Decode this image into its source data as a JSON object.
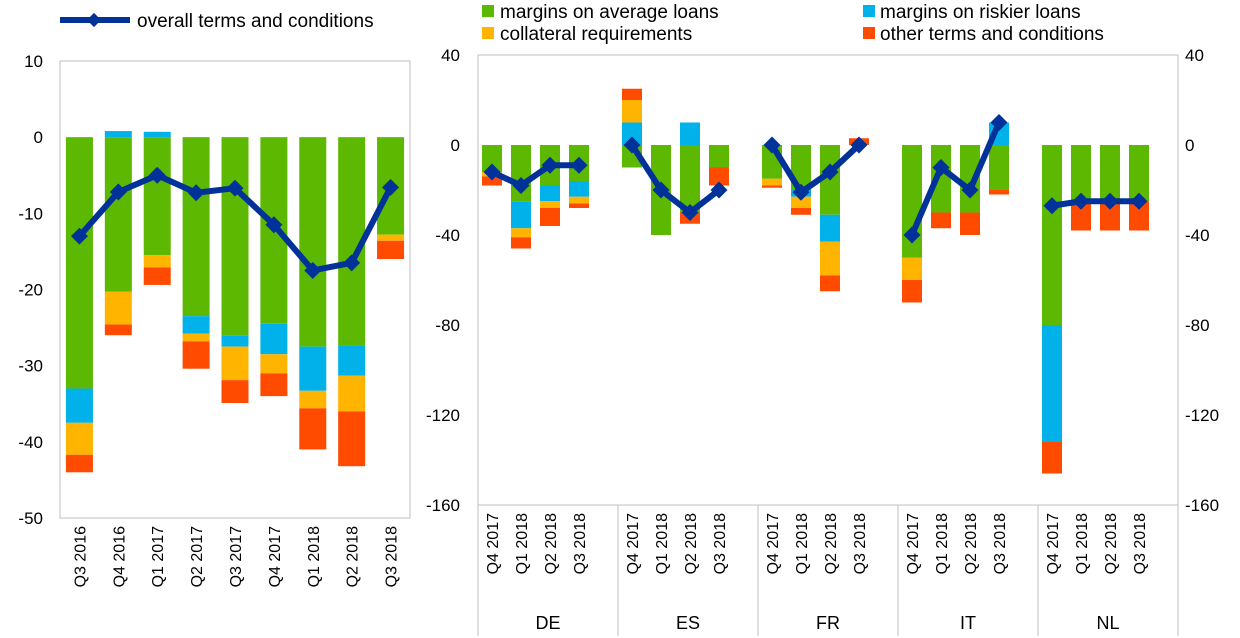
{
  "colors": {
    "margins_avg": "#5cb800",
    "margins_riskier": "#00b1ea",
    "collateral": "#ffb400",
    "other": "#ff4b00",
    "overall": "#003299",
    "frame": "#bfbfbf"
  },
  "legend": {
    "overall": "overall terms and conditions",
    "margins_avg": "margins on average loans",
    "margins_riskier": "margins on riskier loans",
    "collateral": "collateral requirements",
    "other": "other terms and conditions"
  },
  "chart_data": [
    {
      "type": "bar",
      "subtype": "stacked-bar-with-line",
      "categories": [
        "Q3 2016",
        "Q4 2016",
        "Q1 2017",
        "Q2 2017",
        "Q3 2017",
        "Q4 2017",
        "Q1 2018",
        "Q2 2018",
        "Q3 2018"
      ],
      "ylim": [
        -50,
        10
      ],
      "yticks": [
        10,
        0,
        -10,
        -20,
        -30,
        -40,
        -50
      ],
      "ytick_labels": [
        "10",
        "0",
        "-10",
        "-20",
        "-30",
        "-40",
        "-50"
      ],
      "series": [
        {
          "name": "margins on average loans",
          "key": "margins_avg",
          "values": [
            -33,
            -20.3,
            -15.5,
            -23.5,
            -26,
            -24.5,
            -27.5,
            -27.3,
            -12.8
          ]
        },
        {
          "name": "margins on riskier loans",
          "key": "margins_riskier",
          "values": [
            -4.5,
            0.8,
            0.7,
            -2.3,
            -1.5,
            -4,
            -5.8,
            -4,
            0
          ]
        },
        {
          "name": "collateral requirements",
          "key": "collateral",
          "values": [
            -4.2,
            -4.3,
            -1.6,
            -1,
            -4.4,
            -2.5,
            -2.3,
            -4.7,
            -0.8
          ]
        },
        {
          "name": "other terms and conditions",
          "key": "other",
          "values": [
            -2.3,
            -1.4,
            -2.3,
            -3.6,
            -3,
            -3,
            -5.4,
            -7.2,
            -2.4
          ]
        }
      ],
      "line": {
        "name": "overall terms and conditions",
        "values": [
          -13,
          -7.2,
          -5,
          -7.3,
          -6.7,
          -11.5,
          -17.5,
          -16.5,
          -6.6
        ]
      }
    },
    {
      "type": "bar",
      "subtype": "stacked-bar-with-line-grouped",
      "ylim": [
        -160,
        40
      ],
      "yticks": [
        40,
        0,
        -40,
        -80,
        -120,
        -160
      ],
      "ytick_labels": [
        "40",
        "0",
        "-40",
        "-80",
        "-120",
        "-160"
      ],
      "groups": [
        {
          "country": "DE",
          "categories": [
            "Q4 2017",
            "Q1 2018",
            "Q2 2018",
            "Q3 2018"
          ],
          "margins_avg": [
            -12,
            -25,
            -18,
            -16
          ],
          "margins_riskier": [
            0,
            -12,
            -7,
            -7
          ],
          "collateral": [
            -2,
            -4,
            -3,
            -3
          ],
          "other": [
            -4,
            -5,
            -8,
            -2
          ],
          "overall": [
            -12,
            -18,
            -9,
            -9
          ]
        },
        {
          "country": "ES",
          "categories": [
            "Q4 2017",
            "Q1 2018",
            "Q2 2018",
            "Q3 2018"
          ],
          "margins_avg": [
            -10,
            -40,
            -30,
            -10
          ],
          "margins_riskier": [
            10,
            0,
            10,
            0
          ],
          "collateral": [
            10,
            0,
            0,
            0
          ],
          "other": [
            5,
            0,
            -5,
            -8
          ],
          "overall": [
            0,
            -20,
            -30,
            -20
          ]
        },
        {
          "country": "FR",
          "categories": [
            "Q4 2017",
            "Q1 2018",
            "Q2 2018",
            "Q3 2018"
          ],
          "margins_avg": [
            -15,
            -20,
            -31,
            0
          ],
          "margins_riskier": [
            0,
            -3,
            -12,
            0
          ],
          "collateral": [
            -3,
            -5,
            -15,
            0
          ],
          "other": [
            -1,
            -3,
            -7,
            3
          ],
          "overall": [
            0,
            -21,
            -12,
            0
          ]
        },
        {
          "country": "IT",
          "categories": [
            "Q4 2017",
            "Q1 2018",
            "Q2 2018",
            "Q3 2018"
          ],
          "margins_avg": [
            -50,
            -30,
            -30,
            -20
          ],
          "margins_riskier": [
            0,
            0,
            0,
            10
          ],
          "collateral": [
            -10,
            0,
            0,
            0
          ],
          "other": [
            -10,
            -7,
            -10,
            -2
          ],
          "overall": [
            -40,
            -10,
            -20,
            10
          ]
        },
        {
          "country": "NL",
          "categories": [
            "Q4 2017",
            "Q1 2018",
            "Q2 2018",
            "Q3 2018"
          ],
          "margins_avg": [
            -80,
            -25,
            -25,
            -25
          ],
          "margins_riskier": [
            -52,
            0,
            0,
            0
          ],
          "collateral": [
            0,
            0,
            0,
            0
          ],
          "other": [
            -14,
            -13,
            -13,
            -13
          ],
          "overall": [
            -27,
            -25,
            -25,
            -25
          ]
        }
      ]
    }
  ]
}
